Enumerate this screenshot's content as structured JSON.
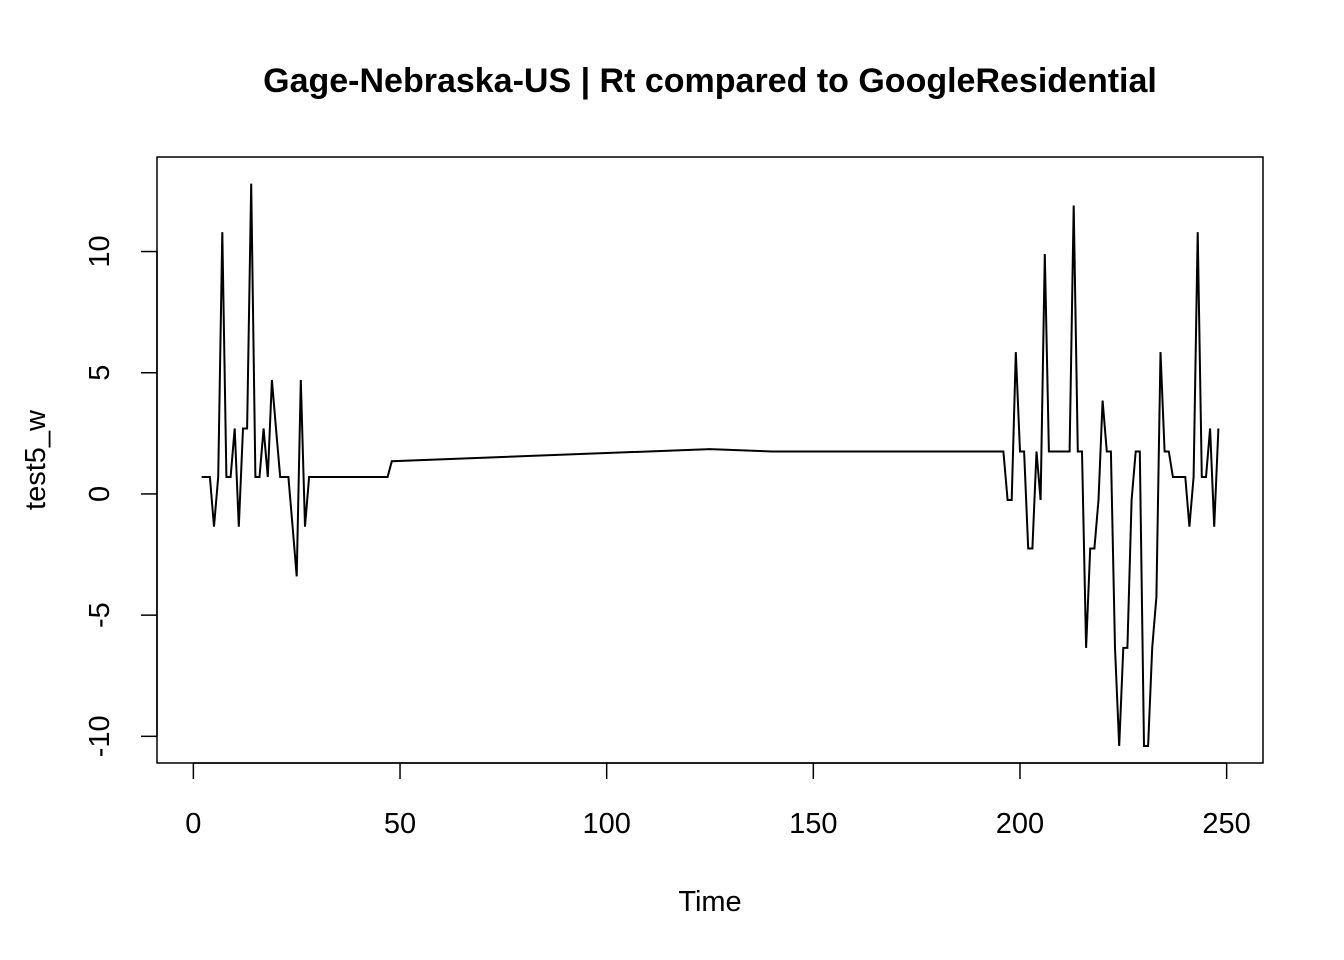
{
  "chart_data": {
    "type": "line",
    "title": "Gage-Nebraska-US | Rt compared to GoogleResidential",
    "xlabel": "Time",
    "ylabel": "test5_w",
    "xlim": [
      -8.8,
      258.8
    ],
    "ylim": [
      -11.1,
      13.9
    ],
    "x_ticks": [
      0,
      50,
      100,
      150,
      200,
      250
    ],
    "y_ticks": [
      -10,
      -5,
      0,
      5,
      10
    ],
    "grid": false,
    "legend": "none",
    "line_color": "#000000",
    "series": [
      {
        "points": [
          [
            2,
            0.7
          ],
          [
            3,
            0.7
          ],
          [
            4,
            0.7
          ],
          [
            5,
            -1.35
          ],
          [
            6,
            0.7
          ],
          [
            7,
            10.8
          ],
          [
            8,
            0.7
          ],
          [
            9,
            0.7
          ],
          [
            10,
            2.7
          ],
          [
            11,
            -1.35
          ],
          [
            12,
            2.7
          ],
          [
            13,
            2.7
          ],
          [
            14,
            12.8
          ],
          [
            15,
            0.7
          ],
          [
            16,
            0.7
          ],
          [
            17,
            2.7
          ],
          [
            18,
            0.7
          ],
          [
            19,
            4.7
          ],
          [
            20,
            2.7
          ],
          [
            21,
            0.7
          ],
          [
            22,
            0.7
          ],
          [
            23,
            0.7
          ],
          [
            24,
            -1.35
          ],
          [
            25,
            -3.4
          ],
          [
            26,
            4.7
          ],
          [
            27,
            -1.35
          ],
          [
            28,
            0.7
          ],
          [
            47,
            0.7
          ],
          [
            48,
            1.35
          ],
          [
            125,
            1.85
          ],
          [
            140,
            1.75
          ],
          [
            196,
            1.75
          ],
          [
            197,
            -0.25
          ],
          [
            198,
            -0.25
          ],
          [
            199,
            5.85
          ],
          [
            200,
            1.75
          ],
          [
            201,
            1.75
          ],
          [
            202,
            -2.25
          ],
          [
            203,
            -2.25
          ],
          [
            204,
            1.75
          ],
          [
            205,
            -0.25
          ],
          [
            206,
            9.9
          ],
          [
            207,
            1.75
          ],
          [
            212,
            1.75
          ],
          [
            213,
            11.9
          ],
          [
            214,
            1.75
          ],
          [
            215,
            1.75
          ],
          [
            216,
            -6.35
          ],
          [
            217,
            -2.25
          ],
          [
            218,
            -2.25
          ],
          [
            219,
            -0.25
          ],
          [
            220,
            3.85
          ],
          [
            221,
            1.75
          ],
          [
            222,
            1.75
          ],
          [
            223,
            -6.35
          ],
          [
            224,
            -10.4
          ],
          [
            225,
            -6.35
          ],
          [
            226,
            -6.35
          ],
          [
            227,
            -0.25
          ],
          [
            228,
            1.75
          ],
          [
            229,
            1.75
          ],
          [
            230,
            -10.4
          ],
          [
            231,
            -10.4
          ],
          [
            232,
            -6.35
          ],
          [
            233,
            -4.25
          ],
          [
            234,
            5.85
          ],
          [
            235,
            1.75
          ],
          [
            236,
            1.75
          ],
          [
            237,
            0.7
          ],
          [
            238,
            0.7
          ],
          [
            239,
            0.7
          ],
          [
            240,
            0.7
          ],
          [
            241,
            -1.35
          ],
          [
            242,
            0.7
          ],
          [
            243,
            10.8
          ],
          [
            244,
            0.7
          ],
          [
            245,
            0.7
          ],
          [
            246,
            2.7
          ],
          [
            247,
            -1.35
          ],
          [
            248,
            2.7
          ]
        ]
      }
    ]
  }
}
